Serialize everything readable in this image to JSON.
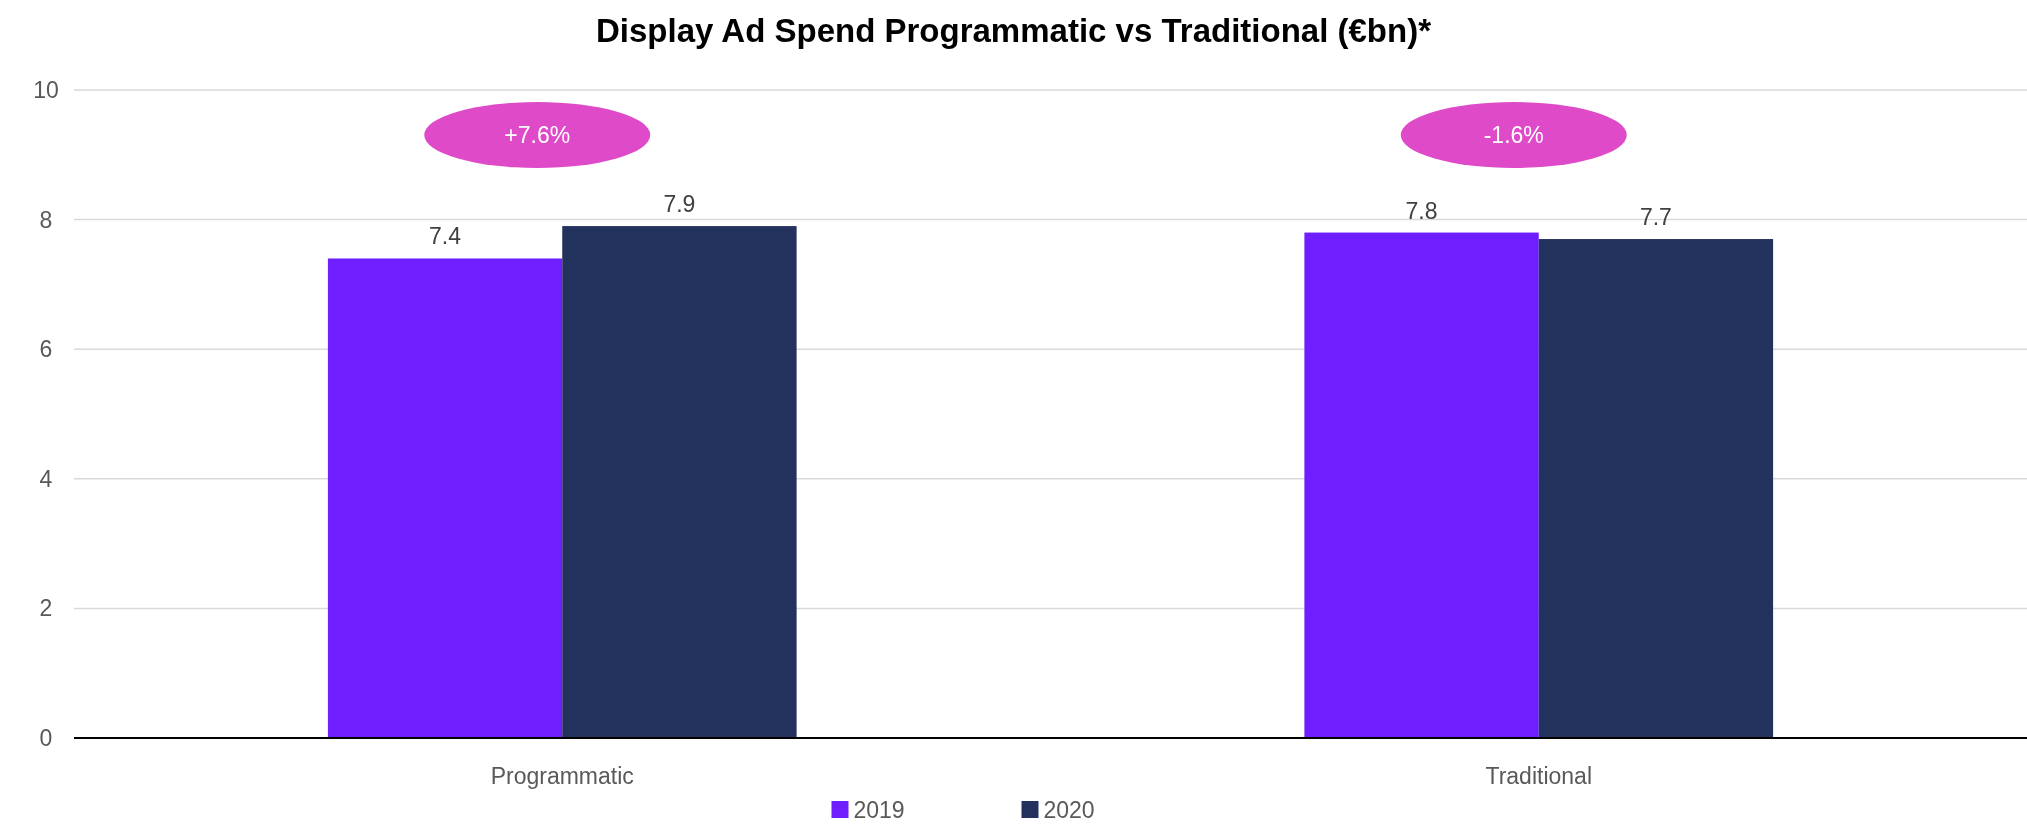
{
  "chart_data": {
    "type": "bar",
    "title": "Display Ad Spend Programmatic vs Traditional (€bn)*",
    "categories": [
      "Programmatic",
      "Traditional"
    ],
    "series": [
      {
        "name": "2019",
        "color": "#6f1fff",
        "values": [
          7.4,
          7.8
        ]
      },
      {
        "name": "2020",
        "color": "#22325c",
        "values": [
          7.9,
          7.7
        ]
      }
    ],
    "ylim": [
      0,
      10
    ],
    "yticks": [
      0,
      2,
      4,
      6,
      8,
      10
    ],
    "grid": "y",
    "legend": "bottom",
    "data_labels": true,
    "annotations": [
      "+7.6%",
      "-1.6%"
    ]
  }
}
